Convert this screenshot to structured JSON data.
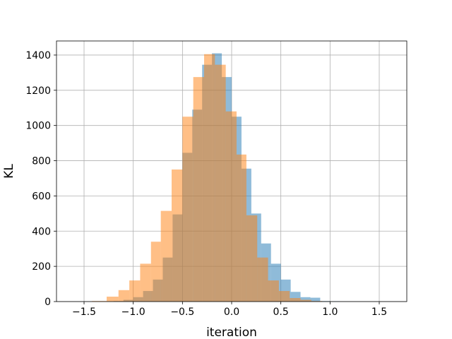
{
  "chart_data": {
    "type": "bar",
    "title": "",
    "xlabel": "iteration",
    "ylabel": "KL",
    "xlim": [
      -1.78,
      1.78
    ],
    "ylim": [
      0,
      1480
    ],
    "xticks": [
      -1.5,
      -1.0,
      -0.5,
      0.0,
      0.5,
      1.0,
      1.5
    ],
    "xtick_labels": [
      "−1.5",
      "−1.0",
      "−0.5",
      "0.0",
      "0.5",
      "1.0",
      "1.5"
    ],
    "yticks": [
      0,
      200,
      400,
      600,
      800,
      1000,
      1200,
      1400
    ],
    "ytick_labels": [
      "0",
      "200",
      "400",
      "600",
      "800",
      "1000",
      "1200",
      "1400"
    ],
    "grid": true,
    "legend": false,
    "series": [
      {
        "color": "#1f77b4",
        "opacity": 0.5,
        "bins": [
          [
            -1.2,
            -1.1,
            3
          ],
          [
            -1.1,
            -1.0,
            10
          ],
          [
            -1.0,
            -0.9,
            25
          ],
          [
            -0.9,
            -0.8,
            60
          ],
          [
            -0.8,
            -0.7,
            125
          ],
          [
            -0.7,
            -0.6,
            250
          ],
          [
            -0.6,
            -0.5,
            495
          ],
          [
            -0.5,
            -0.4,
            845
          ],
          [
            -0.4,
            -0.3,
            1090
          ],
          [
            -0.3,
            -0.2,
            1345
          ],
          [
            -0.2,
            -0.1,
            1410
          ],
          [
            -0.1,
            0.0,
            1275
          ],
          [
            0.0,
            0.1,
            1050
          ],
          [
            0.1,
            0.2,
            755
          ],
          [
            0.2,
            0.3,
            500
          ],
          [
            0.3,
            0.4,
            330
          ],
          [
            0.4,
            0.5,
            215
          ],
          [
            0.5,
            0.6,
            125
          ],
          [
            0.6,
            0.7,
            55
          ],
          [
            0.7,
            0.8,
            25
          ],
          [
            0.8,
            0.9,
            22
          ],
          [
            0.9,
            1.0,
            3
          ],
          [
            1.0,
            1.1,
            2
          ]
        ]
      },
      {
        "color": "#ff7f0e",
        "opacity": 0.5,
        "bins": [
          [
            -1.42,
            -1.27,
            3
          ],
          [
            -1.27,
            -1.15,
            28
          ],
          [
            -1.15,
            -1.04,
            65
          ],
          [
            -1.04,
            -0.93,
            120
          ],
          [
            -0.93,
            -0.82,
            215
          ],
          [
            -0.82,
            -0.72,
            340
          ],
          [
            -0.72,
            -0.61,
            515
          ],
          [
            -0.61,
            -0.5,
            750
          ],
          [
            -0.5,
            -0.39,
            1050
          ],
          [
            -0.39,
            -0.28,
            1275
          ],
          [
            -0.28,
            -0.17,
            1405
          ],
          [
            -0.17,
            -0.06,
            1345
          ],
          [
            -0.06,
            0.05,
            1080
          ],
          [
            0.05,
            0.15,
            835
          ],
          [
            0.15,
            0.26,
            490
          ],
          [
            0.26,
            0.37,
            250
          ],
          [
            0.37,
            0.48,
            120
          ],
          [
            0.48,
            0.59,
            60
          ],
          [
            0.59,
            0.7,
            20
          ],
          [
            0.7,
            0.81,
            10
          ],
          [
            0.81,
            0.92,
            3
          ],
          [
            0.92,
            1.03,
            1
          ],
          [
            1.03,
            1.14,
            0
          ],
          [
            1.14,
            1.25,
            0
          ]
        ]
      }
    ]
  }
}
